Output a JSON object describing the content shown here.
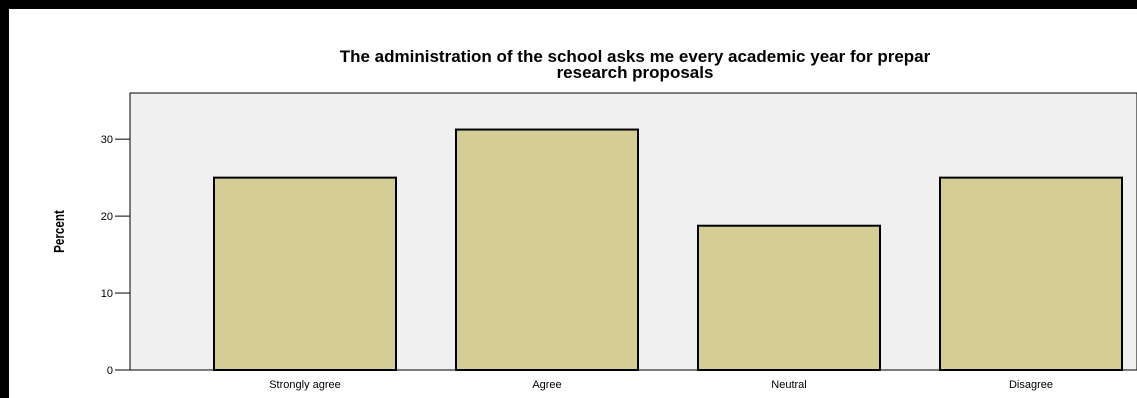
{
  "chart_data": {
    "type": "bar",
    "title_lines": [
      "The administration of the school asks me every academic year for prepar",
      "research proposals"
    ],
    "xlabel": "",
    "ylabel": "Percent",
    "categories": [
      "Strongly agree",
      "Agree",
      "Neutral",
      "Disagree"
    ],
    "values": [
      25.0,
      31.25,
      18.75,
      25.0
    ],
    "ylim": [
      0,
      36
    ],
    "yticks": [
      0,
      10,
      20,
      30
    ],
    "grid": false,
    "legend": "none",
    "colors": {
      "bar_fill": "#d4cd96",
      "bar_stroke": "#000000",
      "plot_background": "#f0f0f0",
      "frame": "#000000"
    }
  }
}
